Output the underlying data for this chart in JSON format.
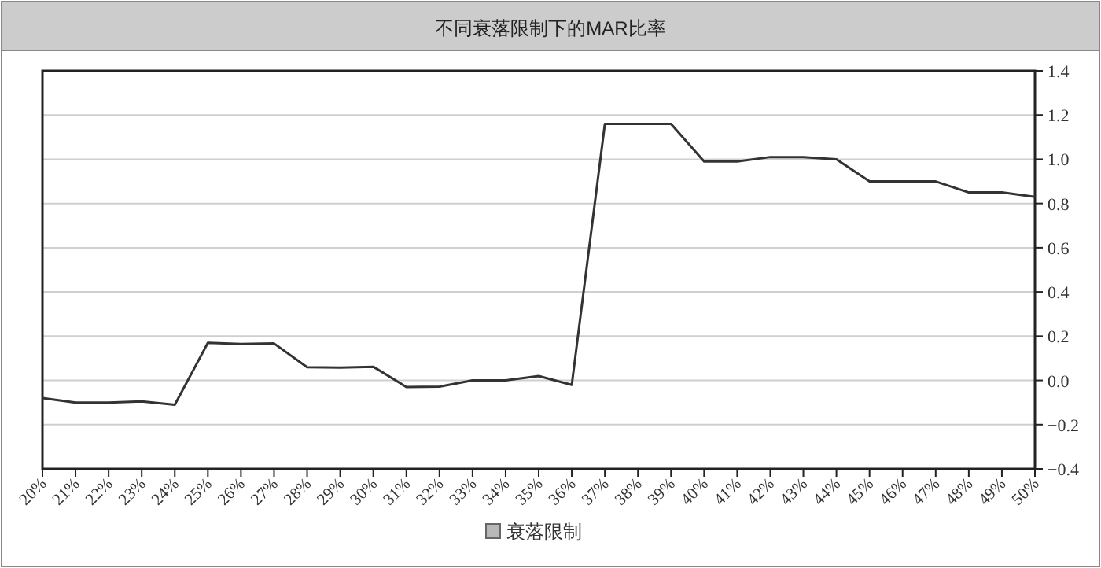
{
  "chart_data": {
    "type": "line",
    "title": "不同衰落限制下的MAR比率",
    "categories": [
      "20%",
      "21%",
      "22%",
      "23%",
      "24%",
      "25%",
      "26%",
      "27%",
      "28%",
      "29%",
      "30%",
      "31%",
      "32%",
      "33%",
      "34%",
      "35%",
      "36%",
      "37%",
      "38%",
      "39%",
      "40%",
      "41%",
      "42%",
      "43%",
      "44%",
      "45%",
      "46%",
      "47%",
      "48%",
      "49%",
      "50%"
    ],
    "series": [
      {
        "name": "衰落限制",
        "color": "#333333",
        "values": [
          -0.08,
          -0.1,
          -0.1,
          -0.095,
          -0.11,
          0.17,
          0.165,
          0.167,
          0.06,
          0.058,
          0.062,
          -0.03,
          -0.028,
          0.0,
          0.0,
          0.02,
          -0.02,
          1.16,
          1.16,
          1.16,
          0.99,
          0.99,
          1.01,
          1.01,
          1.0,
          0.9,
          0.9,
          0.9,
          0.85,
          0.85,
          0.83
        ]
      }
    ],
    "ylim": [
      -0.4,
      1.4
    ],
    "yticks": [
      {
        "value": -0.4,
        "label": "−0.4"
      },
      {
        "value": -0.2,
        "label": "−0.2"
      },
      {
        "value": 0,
        "label": "0.0"
      },
      {
        "value": 0.2,
        "label": "0.2"
      },
      {
        "value": 0.4,
        "label": "0.4"
      },
      {
        "value": 0.6,
        "label": "0.6"
      },
      {
        "value": 0.8,
        "label": "0.8"
      },
      {
        "value": 1.0,
        "label": "1.0"
      },
      {
        "value": 1.2,
        "label": "1.2"
      },
      {
        "value": 1.4,
        "label": "1.4"
      }
    ],
    "grid": "y",
    "legend": "bottom",
    "marker": "none",
    "line_style": "solid"
  }
}
